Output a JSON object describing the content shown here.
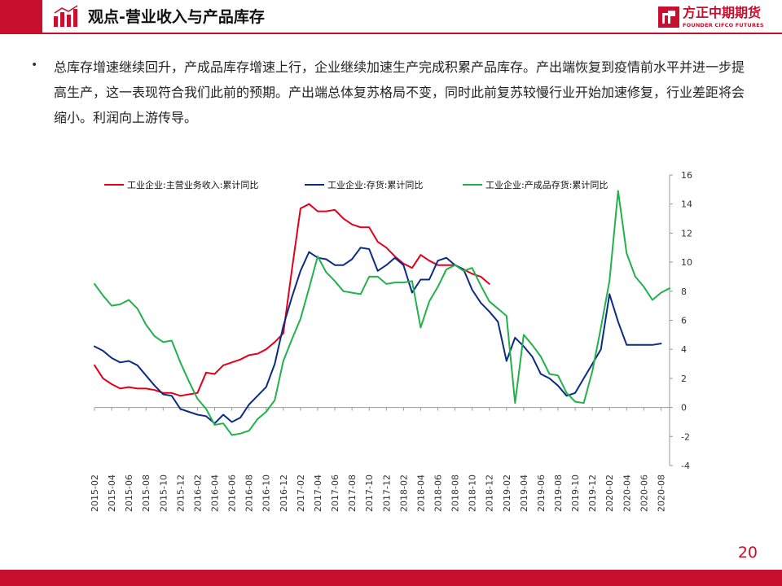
{
  "header": {
    "title": "观点-营业收入与产品库存",
    "logo_cn": "方正中期期货",
    "logo_en": "FOUNDER CIFCO FUTURES"
  },
  "body": {
    "bullet": "•",
    "text": "总库存增速继续回升，产成品库存增速上行，企业继续加速生产完成积累产品库存。产出端恢复到疫情前水平并进一步提高生产，这一表现符合我们此前的预期。产出端总体复苏格局不变，同时此前复苏较慢行业开始加速修复，行业差距将会缩小。利润向上游传导。"
  },
  "page_number": "20",
  "colors": {
    "brand_red": "#c8102e",
    "series_red": "#e3001b",
    "series_blue": "#0c2c84",
    "series_green": "#22b14c"
  },
  "chart_data": {
    "type": "line",
    "title": "",
    "xlabel": "",
    "ylabel": "",
    "ylim": [
      -4,
      16
    ],
    "yticks": [
      16,
      14,
      12,
      10,
      8,
      6,
      4,
      2,
      0,
      -2,
      -4
    ],
    "y_axis_side": "right",
    "grid": false,
    "legend_position": "top",
    "x": [
      "2015-02",
      "2015-03",
      "2015-04",
      "2015-05",
      "2015-06",
      "2015-07",
      "2015-08",
      "2015-09",
      "2015-10",
      "2015-11",
      "2015-12",
      "2016-01",
      "2016-02",
      "2016-03",
      "2016-04",
      "2016-05",
      "2016-06",
      "2016-07",
      "2016-08",
      "2016-09",
      "2016-10",
      "2016-11",
      "2016-12",
      "2017-01",
      "2017-02",
      "2017-03",
      "2017-04",
      "2017-05",
      "2017-06",
      "2017-07",
      "2017-08",
      "2017-09",
      "2017-10",
      "2017-11",
      "2017-12",
      "2018-01",
      "2018-02",
      "2018-03",
      "2018-04",
      "2018-05",
      "2018-06",
      "2018-07",
      "2018-08",
      "2018-09",
      "2018-10",
      "2018-11",
      "2018-12",
      "2019-01",
      "2019-02",
      "2019-03",
      "2019-04",
      "2019-05",
      "2019-06",
      "2019-07",
      "2019-08",
      "2019-09",
      "2019-10",
      "2019-11",
      "2019-12",
      "2020-01",
      "2020-02",
      "2020-03",
      "2020-04",
      "2020-05",
      "2020-06",
      "2020-07",
      "2020-08",
      "2020-09"
    ],
    "xtick_labels": [
      "2015-02",
      "2015-04",
      "2015-06",
      "2015-08",
      "2015-10",
      "2015-12",
      "2016-02",
      "2016-04",
      "2016-06",
      "2016-08",
      "2016-10",
      "2016-12",
      "2017-02",
      "2017-04",
      "2017-06",
      "2017-08",
      "2017-10",
      "2017-12",
      "2018-02",
      "2018-04",
      "2018-06",
      "2018-08",
      "2018-10",
      "2018-12",
      "2019-02",
      "2019-04",
      "2019-06",
      "2019-08",
      "2019-10",
      "2019-12",
      "2020-02",
      "2020-04",
      "2020-06",
      "2020-08"
    ],
    "series": [
      {
        "name": "工业企业:主营业务收入:累计同比",
        "color": "#e3001b",
        "values": [
          2.9,
          2.0,
          1.6,
          1.3,
          1.4,
          1.3,
          1.3,
          1.2,
          1.0,
          1.0,
          0.8,
          0.9,
          1.0,
          2.4,
          2.3,
          2.9,
          3.1,
          3.3,
          3.6,
          3.7,
          4.0,
          4.5,
          5.1,
          9.5,
          13.7,
          14.0,
          13.5,
          13.5,
          13.6,
          13.0,
          12.6,
          12.4,
          12.4,
          11.4,
          11.0,
          10.4,
          9.9,
          9.6,
          10.5,
          10.1,
          9.8,
          9.8,
          9.8,
          9.5,
          9.2,
          9.0,
          8.5,
          null,
          null,
          null,
          null,
          null,
          null,
          null,
          null,
          null,
          null,
          null,
          null,
          null,
          null,
          null,
          null,
          null,
          null,
          null,
          null,
          null
        ]
      },
      {
        "name": "工业企业:存货:累计同比",
        "color": "#0c2c84",
        "values": [
          4.2,
          3.9,
          3.4,
          3.1,
          3.2,
          2.9,
          2.2,
          1.5,
          0.9,
          0.8,
          -0.1,
          -0.3,
          -0.5,
          -0.6,
          -1.1,
          -0.5,
          -1.0,
          -0.7,
          0.2,
          0.8,
          1.4,
          3.0,
          5.6,
          7.6,
          9.4,
          10.7,
          10.3,
          10.2,
          9.8,
          9.8,
          10.2,
          11.0,
          10.9,
          9.4,
          9.8,
          10.3,
          9.8,
          7.9,
          8.8,
          8.8,
          10.1,
          10.3,
          9.8,
          9.5,
          8.1,
          7.2,
          6.6,
          5.9,
          3.2,
          4.8,
          4.2,
          3.5,
          2.3,
          2.0,
          1.5,
          0.8,
          1.0,
          2.0,
          3.0,
          4.0,
          7.8,
          5.9,
          4.3,
          4.3,
          4.3,
          4.3,
          4.4,
          null
        ]
      },
      {
        "name": "工业企业:产成品存货:累计同比",
        "color": "#22b14c",
        "values": [
          8.5,
          7.7,
          7.0,
          7.1,
          7.4,
          6.8,
          5.7,
          4.9,
          4.5,
          4.6,
          3.1,
          1.8,
          0.6,
          -0.1,
          -1.2,
          -1.1,
          -1.9,
          -1.8,
          -1.6,
          -0.8,
          -0.3,
          0.5,
          3.2,
          4.7,
          6.1,
          8.2,
          10.4,
          9.3,
          8.7,
          8.0,
          7.9,
          7.8,
          9.0,
          9.0,
          8.5,
          8.6,
          8.6,
          8.7,
          5.5,
          7.3,
          8.3,
          9.5,
          9.8,
          9.4,
          9.6,
          8.4,
          7.3,
          6.8,
          6.3,
          0.3,
          5.0,
          4.3,
          3.5,
          2.3,
          2.2,
          1.0,
          0.4,
          0.3,
          2.5,
          5.5,
          8.7,
          14.9,
          10.6,
          9.0,
          8.3,
          7.4,
          7.9,
          8.2
        ]
      }
    ]
  }
}
